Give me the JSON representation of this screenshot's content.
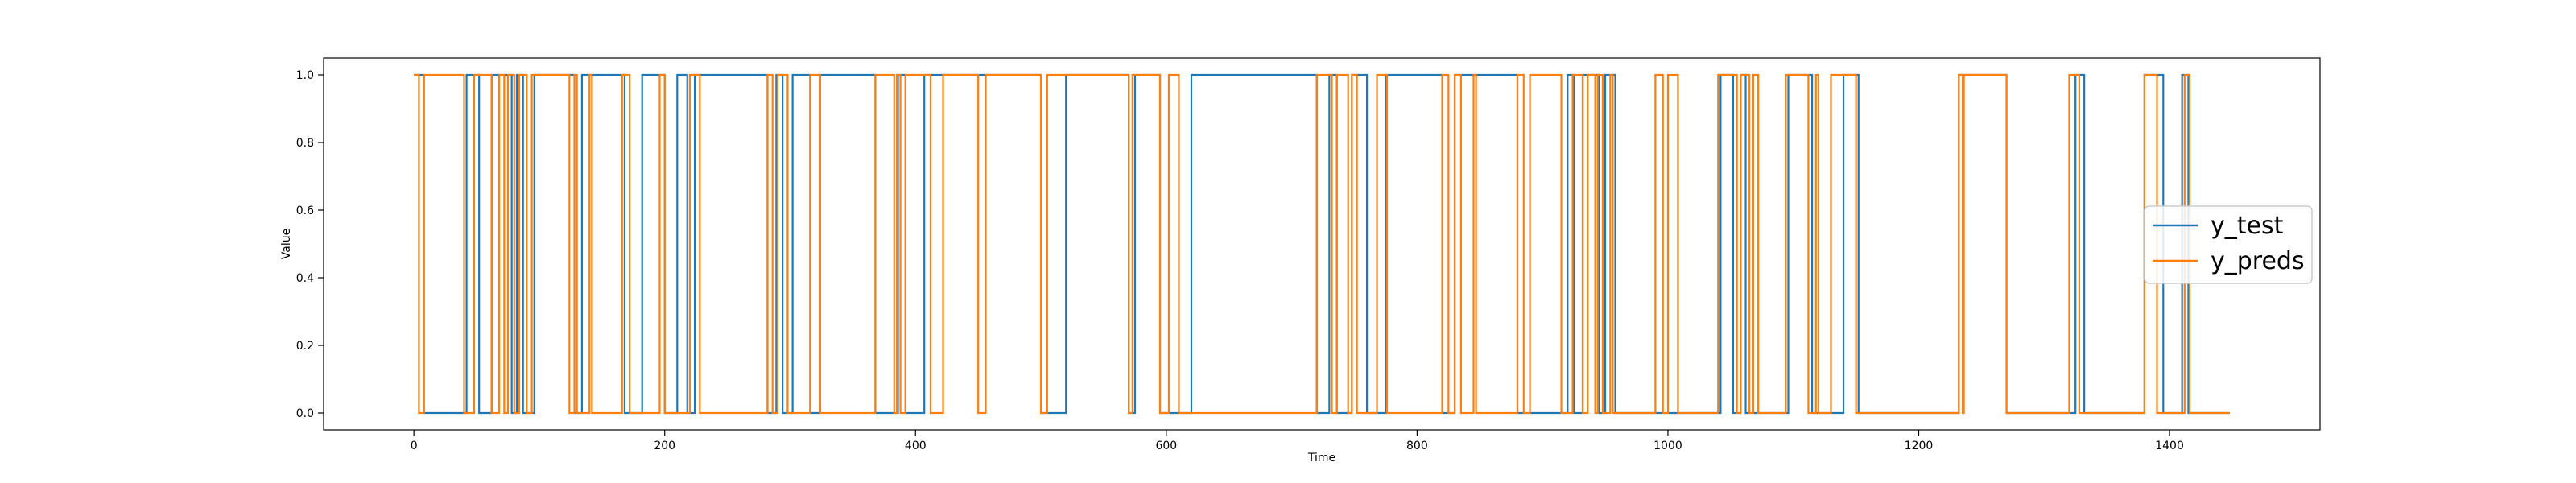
{
  "chart_data": {
    "type": "line",
    "title": "",
    "xlabel": "Time",
    "ylabel": "Value",
    "xlim": [
      -72,
      1520
    ],
    "ylim": [
      -0.05,
      1.05
    ],
    "x_ticks": [
      0,
      200,
      400,
      600,
      800,
      1000,
      1200,
      1400
    ],
    "y_ticks": [
      0.0,
      0.2,
      0.4,
      0.6,
      0.8,
      1.0
    ],
    "y_tick_labels": [
      "0.0",
      "0.2",
      "0.4",
      "0.6",
      "0.8",
      "1.0"
    ],
    "grid": false,
    "legend_position": "center-right",
    "x_end": 1448,
    "series": [
      {
        "name": "y_test",
        "color": "#1f77b4",
        "start_value": 1,
        "transitions": [
          8,
          42,
          52,
          62,
          78,
          82,
          87,
          96,
          128,
          134,
          168,
          182,
          200,
          210,
          218,
          224,
          282,
          289,
          294,
          302,
          316,
          324,
          368,
          386,
          392,
          407,
          500,
          520,
          570,
          575,
          595,
          620,
          720,
          730,
          736,
          748,
          760,
          775,
          820,
          830,
          880,
          920,
          925,
          932,
          945,
          950,
          958,
          1042,
          1052,
          1058,
          1062,
          1096,
          1115,
          1140,
          1152,
          1232,
          1270,
          1325,
          1332,
          1380,
          1395,
          1410,
          1415
        ]
      },
      {
        "name": "y_preds",
        "color": "#ff7f0e",
        "start_value": 1,
        "transitions": [
          4,
          8,
          40,
          48,
          62,
          68,
          72,
          75,
          80,
          84,
          90,
          94,
          124,
          128,
          130,
          140,
          142,
          166,
          172,
          196,
          200,
          220,
          228,
          282,
          286,
          290,
          298,
          316,
          324,
          368,
          383,
          385,
          388,
          392,
          412,
          422,
          450,
          456,
          500,
          505,
          570,
          573,
          595,
          602,
          610,
          720,
          732,
          736,
          745,
          748,
          752,
          768,
          776,
          820,
          825,
          830,
          835,
          845,
          847,
          880,
          885,
          890,
          915,
          924,
          932,
          936,
          942,
          944,
          948,
          954,
          956,
          990,
          996,
          1000,
          1008,
          1040,
          1055,
          1058,
          1065,
          1068,
          1072,
          1094,
          1112,
          1118,
          1120,
          1130,
          1150,
          1232,
          1235,
          1236,
          1270,
          1320,
          1328,
          1380,
          1390,
          1412,
          1416
        ]
      }
    ]
  }
}
